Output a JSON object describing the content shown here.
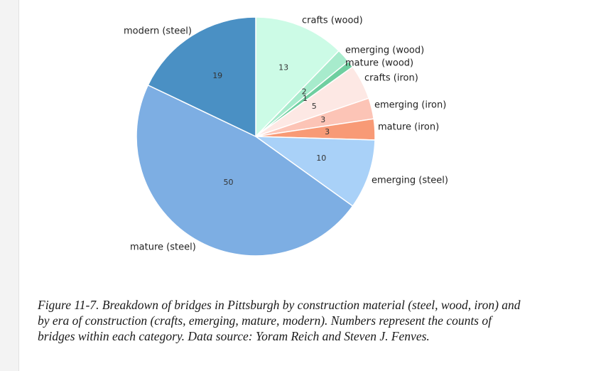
{
  "chart_data": {
    "type": "pie",
    "slices": [
      {
        "label": "crafts (wood)",
        "value": 13,
        "color": "#ccfbe6"
      },
      {
        "label": "emerging (wood)",
        "value": 2,
        "color": "#a7ebcc"
      },
      {
        "label": "mature (wood)",
        "value": 1,
        "color": "#6fcfa0"
      },
      {
        "label": "crafts (iron)",
        "value": 5,
        "color": "#fde8e4"
      },
      {
        "label": "emerging (iron)",
        "value": 3,
        "color": "#fcc4b6"
      },
      {
        "label": "mature (iron)",
        "value": 3,
        "color": "#f89a76"
      },
      {
        "label": "emerging (steel)",
        "value": 10,
        "color": "#a9d1f8"
      },
      {
        "label": "mature (steel)",
        "value": 50,
        "color": "#7daee3"
      },
      {
        "label": "modern (steel)",
        "value": 19,
        "color": "#4a90c4"
      }
    ],
    "start_angle": "12 o'clock",
    "direction": "clockwise"
  },
  "caption": "Figure 11-7. Breakdown of bridges in Pittsburgh by construction material (steel, wood, iron) and by era of construction (crafts, emerging, mature, modern). Numbers represent the counts of bridges within each category. Data source: Yoram Reich and Steven J. Fenves."
}
